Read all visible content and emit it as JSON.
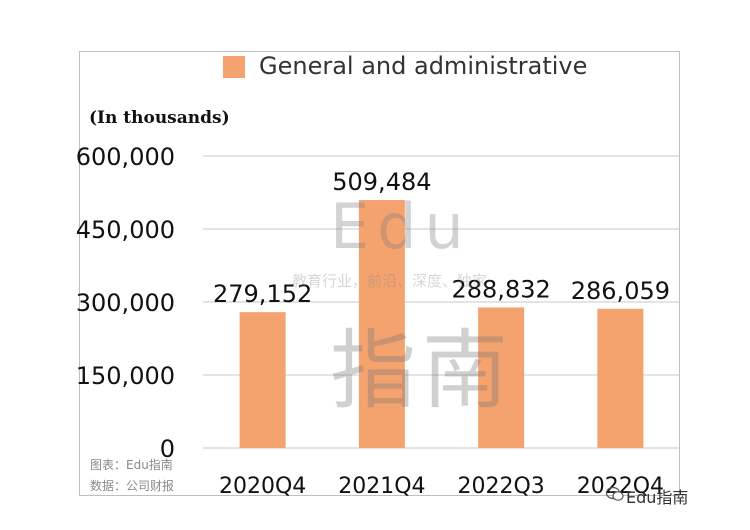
{
  "chart_data": {
    "type": "bar",
    "categories": [
      "2020Q4",
      "2021Q4",
      "2022Q3",
      "2022Q4"
    ],
    "series": [
      {
        "name": "General and administrative",
        "values": [
          279152,
          509484,
          288832,
          286059
        ]
      }
    ],
    "data_labels": [
      "279,152",
      "509,484",
      "288,832",
      "286,059"
    ],
    "y_ticks": [
      "0",
      "150,000",
      "300,000",
      "450,000",
      "600,000"
    ],
    "y_tick_values": [
      0,
      150000,
      300000,
      450000,
      600000
    ],
    "ylim": [
      0,
      600000
    ],
    "units_note": "(In thousands)",
    "grid": true,
    "legend_position": "top",
    "bar_color": "#f4a26e"
  },
  "notes": {
    "chart_source": "图表：Edu指南",
    "data_source": "数据：公司财报"
  },
  "watermark": {
    "main": "Edu",
    "tagline": "教育行业，前沿、深度、独家",
    "cn": "指南"
  },
  "brand": {
    "label": "Edu指南",
    "icon": "wechat-icon"
  }
}
